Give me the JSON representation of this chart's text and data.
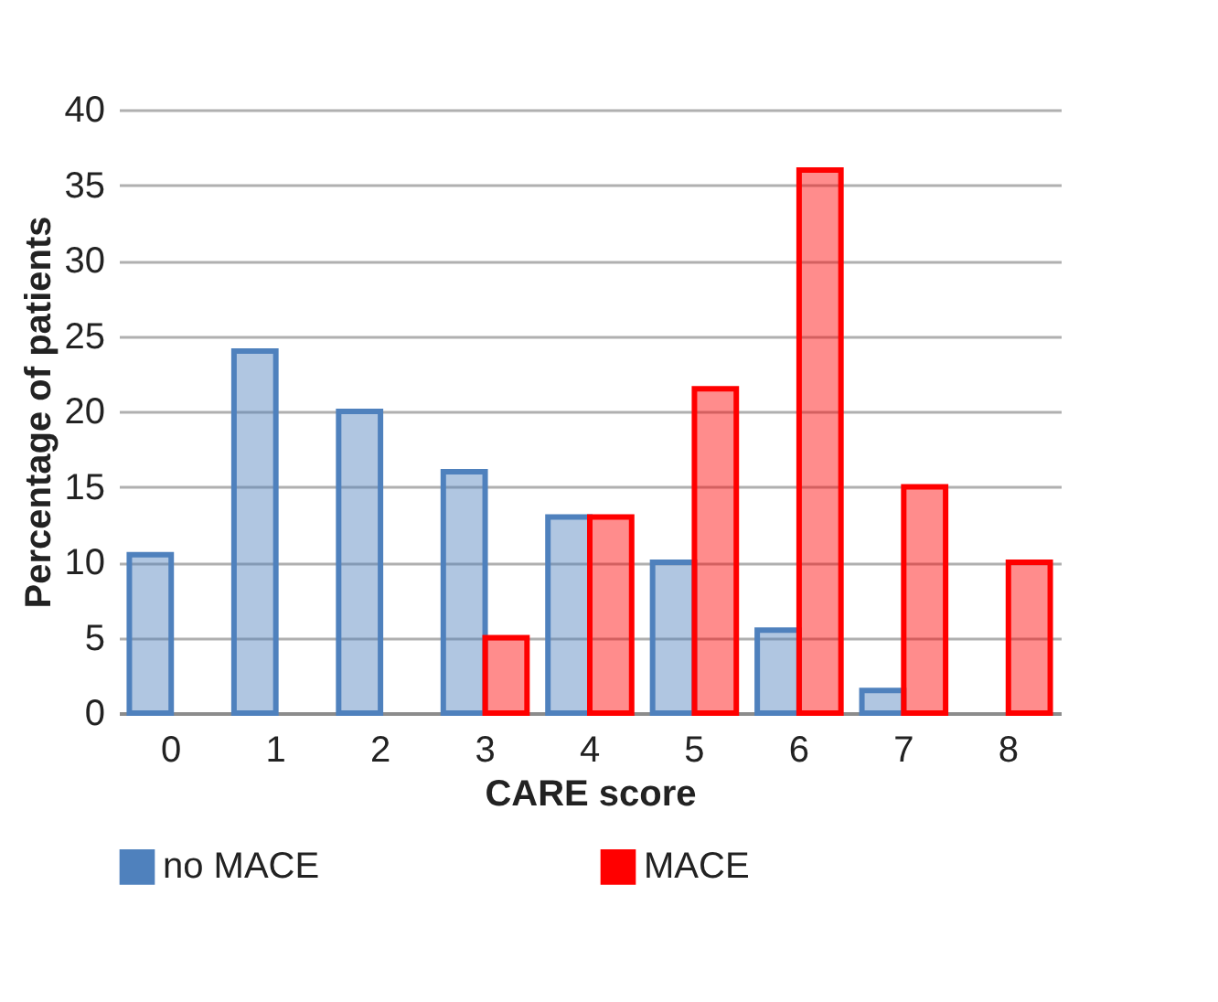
{
  "chart_data": {
    "type": "bar",
    "xlabel": "CARE score",
    "ylabel": "Percentage of patients",
    "categories": [
      "0",
      "1",
      "2",
      "3",
      "4",
      "5",
      "6",
      "7",
      "8"
    ],
    "series": [
      {
        "name": "no MACE",
        "color": "#4f81bd",
        "values": [
          10.5,
          24,
          20,
          16,
          13,
          10,
          5.5,
          1.5,
          null
        ]
      },
      {
        "name": "MACE",
        "color": "#ff0000",
        "values": [
          null,
          null,
          null,
          5,
          13,
          21.5,
          36,
          15,
          10
        ]
      }
    ],
    "ylim": [
      0,
      40
    ],
    "yticks": [
      0,
      5,
      10,
      15,
      20,
      25,
      30,
      35,
      40
    ],
    "grid": "y",
    "legend": "bottom"
  }
}
